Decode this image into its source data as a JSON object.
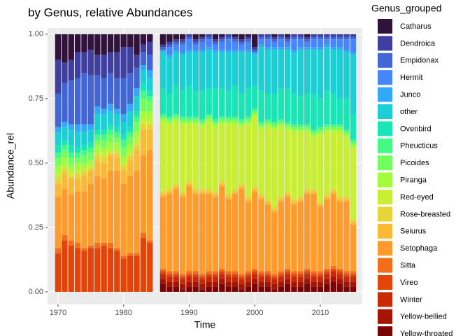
{
  "chart_data": {
    "type": "bar",
    "stacked": true,
    "title": "by Genus, relative Abundances",
    "x_label": "Time",
    "y_label": "Abundance_rel",
    "legend_title": "Genus_grouped",
    "legend_position": "right",
    "x": [
      1970,
      1971,
      1972,
      1973,
      1974,
      1975,
      1976,
      1977,
      1978,
      1979,
      1980,
      1981,
      1982,
      1983,
      1984,
      1986,
      1987,
      1988,
      1989,
      1990,
      1991,
      1992,
      1993,
      1994,
      1995,
      1996,
      1997,
      1998,
      1999,
      2000,
      2001,
      2002,
      2003,
      2004,
      2005,
      2006,
      2007,
      2008,
      2009,
      2010,
      2011,
      2012,
      2013,
      2014,
      2015
    ],
    "xlim": [
      1968.4,
      2016.4
    ],
    "xticks": [
      1970,
      1980,
      1990,
      2000,
      2010
    ],
    "ylim": [
      -0.049,
      1.024
    ],
    "yticks": [
      {
        "value": 0,
        "label": "0.00"
      },
      {
        "value": 0.25,
        "label": "0.25"
      },
      {
        "value": 0.5,
        "label": "0.50"
      },
      {
        "value": 0.75,
        "label": "0.75"
      },
      {
        "value": 1,
        "label": "1.00"
      }
    ],
    "grid": true,
    "series": [
      {
        "name": "Catharus",
        "color": "#30123b",
        "values": [
          0.1,
          0.11,
          0.1,
          0.07,
          0.07,
          0.06,
          0.08,
          0.08,
          0.07,
          0.07,
          0.05,
          0.05,
          0.08,
          0.04,
          0.03,
          0.04,
          0.03,
          0.02,
          0.02,
          0,
          0.02,
          0.01,
          0,
          0.02,
          0.01,
          0,
          0.01,
          0.02,
          0.01,
          0.05,
          0,
          0,
          0.01,
          0,
          0.01,
          0,
          0,
          0.01,
          0,
          0,
          0,
          0,
          0,
          0,
          0
        ]
      },
      {
        "name": "Dendroica",
        "color": "#3e3f9e",
        "values": [
          0.13,
          0.08,
          0.08,
          0.1,
          0.08,
          0.1,
          0.08,
          0.09,
          0.08,
          0.1,
          0.12,
          0.1,
          0.05,
          0.03,
          0.05,
          0.01,
          0.01,
          0.01,
          0.01,
          0.01,
          0.01,
          0.01,
          0.01,
          0.01,
          0.01,
          0.01,
          0.01,
          0.01,
          0.01,
          0.01,
          0.01,
          0.01,
          0.01,
          0.01,
          0.01,
          0.01,
          0.01,
          0.01,
          0.01,
          0.01,
          0.01,
          0.01,
          0.01,
          0.01,
          0.01
        ]
      },
      {
        "name": "Empidonax",
        "color": "#4266d4",
        "values": [
          0.13,
          0.15,
          0.17,
          0.18,
          0.2,
          0.19,
          0.12,
          0.12,
          0.12,
          0.12,
          0.14,
          0.12,
          0.08,
          0.05,
          0.06,
          0.01,
          0.01,
          0.01,
          0.01,
          0.01,
          0.01,
          0.01,
          0.01,
          0.01,
          0.01,
          0.01,
          0.01,
          0.01,
          0.01,
          0.01,
          0.01,
          0.01,
          0.01,
          0.01,
          0.01,
          0.01,
          0.01,
          0.01,
          0.01,
          0.01,
          0.01,
          0.01,
          0.01,
          0.01,
          0.01
        ]
      },
      {
        "name": "Hermit",
        "color": "#4686fb",
        "values": [
          0,
          0,
          0,
          0,
          0,
          0,
          0,
          0,
          0,
          0,
          0,
          0,
          0,
          0,
          0,
          0,
          0.03,
          0.02,
          0.03,
          0.04,
          0.02,
          0.03,
          0.03,
          0.02,
          0.03,
          0.04,
          0.03,
          0.02,
          0.03,
          0,
          0.02,
          0.03,
          0.02,
          0.03,
          0.02,
          0.04,
          0.03,
          0.02,
          0.03,
          0.03,
          0.02,
          0.03,
          0.03,
          0.04,
          0.05
        ]
      },
      {
        "name": "Junco",
        "color": "#32a9f8",
        "values": [
          0.02,
          0.02,
          0.02,
          0.03,
          0.03,
          0.02,
          0.03,
          0.02,
          0.03,
          0.02,
          0.03,
          0.03,
          0.03,
          0.02,
          0.03,
          0.01,
          0.01,
          0.01,
          0.01,
          0.01,
          0.01,
          0.01,
          0.01,
          0.01,
          0.01,
          0.01,
          0.01,
          0.01,
          0.01,
          0.01,
          0.01,
          0.01,
          0.01,
          0.01,
          0.01,
          0.01,
          0.01,
          0.01,
          0.01,
          0.01,
          0.01,
          0.01,
          0.01,
          0.01,
          0.01
        ]
      },
      {
        "name": "other",
        "color": "#1bcfd4",
        "values": [
          0.05,
          0.05,
          0.06,
          0.06,
          0.05,
          0.05,
          0.06,
          0.06,
          0.05,
          0.05,
          0.05,
          0.06,
          0.06,
          0.05,
          0.05,
          0.14,
          0.14,
          0.13,
          0.14,
          0.13,
          0.15,
          0.15,
          0.15,
          0.14,
          0.14,
          0.15,
          0.13,
          0.16,
          0.14,
          0.12,
          0.17,
          0.17,
          0.17,
          0.15,
          0.15,
          0.16,
          0.18,
          0.17,
          0.17,
          0.19,
          0.17,
          0.17,
          0.19,
          0.18,
          0.23
        ]
      },
      {
        "name": "Ovenbird",
        "color": "#1ae5b6",
        "values": [
          0.03,
          0.02,
          0.03,
          0.02,
          0.02,
          0.02,
          0.02,
          0.02,
          0.02,
          0.02,
          0.02,
          0.02,
          0.02,
          0.03,
          0.02,
          0.1,
          0.09,
          0.11,
          0.1,
          0.12,
          0.1,
          0.11,
          0.1,
          0.12,
          0.11,
          0.1,
          0.12,
          0.1,
          0.11,
          0.09,
          0.12,
          0.1,
          0.11,
          0.12,
          0.13,
          0.12,
          0.11,
          0.12,
          0.14,
          0.11,
          0.13,
          0.12,
          0.1,
          0.12,
          0.1
        ]
      },
      {
        "name": "Pheucticus",
        "color": "#46f884",
        "values": [
          0.02,
          0.02,
          0.02,
          0.02,
          0.02,
          0.02,
          0.02,
          0.02,
          0.02,
          0.02,
          0.03,
          0.02,
          0.02,
          0.03,
          0.02,
          0.01,
          0.01,
          0.01,
          0.01,
          0.01,
          0.01,
          0.01,
          0.01,
          0.01,
          0.01,
          0.01,
          0.01,
          0.01,
          0.01,
          0.01,
          0.01,
          0.01,
          0.01,
          0.01,
          0.01,
          0.01,
          0.01,
          0.01,
          0.01,
          0.01,
          0.01,
          0.01,
          0.01,
          0.01,
          0.01
        ]
      },
      {
        "name": "Picoides",
        "color": "#72fe5e",
        "values": [
          0.03,
          0.03,
          0.03,
          0.02,
          0.03,
          0.03,
          0.02,
          0.03,
          0.03,
          0.02,
          0.03,
          0.03,
          0.04,
          0.05,
          0.04,
          0.01,
          0.01,
          0.01,
          0.01,
          0.01,
          0.01,
          0.01,
          0.01,
          0.01,
          0.01,
          0.01,
          0.01,
          0.01,
          0.01,
          0.01,
          0.01,
          0.01,
          0.01,
          0.01,
          0.01,
          0.01,
          0.01,
          0.01,
          0.01,
          0.01,
          0.01,
          0.01,
          0.01,
          0.01,
          0.01
        ]
      },
      {
        "name": "Piranga",
        "color": "#a2fc3c",
        "values": [
          0.03,
          0.03,
          0.02,
          0.03,
          0.02,
          0.02,
          0.03,
          0.02,
          0.03,
          0.03,
          0.03,
          0.03,
          0.03,
          0.03,
          0.03,
          0.01,
          0.01,
          0.01,
          0.01,
          0.01,
          0.01,
          0.01,
          0.01,
          0.01,
          0.01,
          0.01,
          0.01,
          0.01,
          0.01,
          0.01,
          0.01,
          0.01,
          0.01,
          0.01,
          0.01,
          0.01,
          0.01,
          0.01,
          0.01,
          0.01,
          0.01,
          0.01,
          0.01,
          0.01,
          0.01
        ]
      },
      {
        "name": "Red-eyed",
        "color": "#c8ef34",
        "values": [
          0.02,
          0.01,
          0.02,
          0.01,
          0.01,
          0.01,
          0.01,
          0.02,
          0.01,
          0.01,
          0.01,
          0.01,
          0.02,
          0.02,
          0.02,
          0.27,
          0.25,
          0.24,
          0.26,
          0.22,
          0.25,
          0.24,
          0.26,
          0.25,
          0.22,
          0.27,
          0.25,
          0.22,
          0.28,
          0.27,
          0.25,
          0.28,
          0.3,
          0.27,
          0.24,
          0.26,
          0.25,
          0.22,
          0.2,
          0.26,
          0.24,
          0.22,
          0.25,
          0.23,
          0.28
        ]
      },
      {
        "name": "Rose-breasted",
        "color": "#e7d439",
        "values": [
          0.02,
          0.02,
          0.01,
          0.02,
          0.02,
          0.01,
          0.02,
          0.02,
          0.01,
          0.02,
          0.02,
          0.02,
          0.02,
          0.02,
          0.02,
          0.01,
          0.01,
          0.01,
          0.01,
          0.01,
          0.01,
          0.01,
          0.01,
          0.01,
          0.01,
          0.01,
          0.01,
          0.01,
          0.01,
          0.01,
          0.01,
          0.01,
          0.01,
          0.01,
          0.01,
          0.01,
          0.01,
          0.01,
          0.01,
          0.01,
          0.01,
          0.01,
          0.01,
          0.01,
          0.01
        ]
      },
      {
        "name": "Seiurus",
        "color": "#fbb938",
        "values": [
          0.05,
          0.06,
          0.06,
          0.05,
          0.06,
          0.05,
          0.06,
          0.06,
          0.06,
          0.05,
          0.05,
          0.06,
          0.08,
          0.1,
          0.08,
          0.01,
          0.01,
          0.01,
          0.01,
          0.01,
          0.01,
          0.01,
          0.01,
          0.01,
          0.01,
          0.01,
          0.01,
          0.01,
          0.01,
          0.01,
          0.01,
          0.01,
          0.01,
          0.01,
          0.01,
          0.01,
          0.01,
          0.01,
          0.01,
          0.01,
          0.01,
          0.01,
          0.01,
          0.01,
          0.01
        ]
      },
      {
        "name": "Setophaga",
        "color": "#fe9b2d",
        "values": [
          0.2,
          0.18,
          0.18,
          0.2,
          0.22,
          0.24,
          0.26,
          0.25,
          0.28,
          0.3,
          0.28,
          0.3,
          0.32,
          0.3,
          0.35,
          0.28,
          0.3,
          0.32,
          0.3,
          0.33,
          0.3,
          0.31,
          0.3,
          0.29,
          0.32,
          0.28,
          0.3,
          0.33,
          0.27,
          0.3,
          0.28,
          0.26,
          0.24,
          0.27,
          0.28,
          0.26,
          0.27,
          0.29,
          0.3,
          0.25,
          0.27,
          0.28,
          0.26,
          0.27,
          0.18
        ]
      },
      {
        "name": "Sitta",
        "color": "#f36e1b",
        "values": [
          0.02,
          0.02,
          0.02,
          0.02,
          0.01,
          0.01,
          0.02,
          0.01,
          0.02,
          0.01,
          0.01,
          0.01,
          0.01,
          0.02,
          0.01,
          0.01,
          0.01,
          0.01,
          0.01,
          0.01,
          0.01,
          0.01,
          0.01,
          0.01,
          0.01,
          0.01,
          0.01,
          0.01,
          0.01,
          0.01,
          0.01,
          0.01,
          0.01,
          0.01,
          0.01,
          0.01,
          0.01,
          0.01,
          0.01,
          0.01,
          0.01,
          0.01,
          0.01,
          0.01,
          0.01
        ]
      },
      {
        "name": "Vireo",
        "color": "#e3440a",
        "values": [
          0.15,
          0.2,
          0.18,
          0.17,
          0.16,
          0.17,
          0.17,
          0.18,
          0.17,
          0.16,
          0.13,
          0.14,
          0.14,
          0.21,
          0.19,
          0.01,
          0.01,
          0.01,
          0.01,
          0.01,
          0.01,
          0.01,
          0.01,
          0.01,
          0.01,
          0.01,
          0.01,
          0.01,
          0.01,
          0.01,
          0.01,
          0.01,
          0.01,
          0.01,
          0.01,
          0.01,
          0.01,
          0.01,
          0.01,
          0.01,
          0.01,
          0.01,
          0.01,
          0.01,
          0.01
        ]
      },
      {
        "name": "Winter",
        "color": "#c92903",
        "values": [
          0,
          0,
          0,
          0,
          0,
          0,
          0,
          0,
          0,
          0,
          0,
          0,
          0,
          0,
          0,
          0.02,
          0.02,
          0.02,
          0.02,
          0.02,
          0.02,
          0.02,
          0.02,
          0.02,
          0.02,
          0.02,
          0.02,
          0.02,
          0.02,
          0.02,
          0.02,
          0.02,
          0.02,
          0.02,
          0.02,
          0.02,
          0.02,
          0.02,
          0.02,
          0.02,
          0.02,
          0.02,
          0.02,
          0.02,
          0.02
        ]
      },
      {
        "name": "Yellow-bellied",
        "color": "#a51301",
        "values": [
          0,
          0,
          0,
          0,
          0,
          0,
          0,
          0,
          0,
          0,
          0,
          0,
          0,
          0,
          0,
          0.02,
          0.02,
          0.02,
          0.02,
          0.02,
          0.02,
          0.02,
          0.02,
          0.02,
          0.02,
          0.02,
          0.02,
          0.02,
          0.02,
          0.02,
          0.02,
          0.02,
          0.02,
          0.02,
          0.02,
          0.02,
          0.02,
          0.02,
          0.02,
          0.02,
          0.02,
          0.02,
          0.02,
          0.02,
          0.02
        ]
      },
      {
        "name": "Yellow-throated",
        "color": "#7a0403",
        "values": [
          0,
          0,
          0,
          0,
          0,
          0,
          0,
          0,
          0,
          0,
          0,
          0,
          0,
          0,
          0,
          0.03,
          0.02,
          0.02,
          0.01,
          0.02,
          0.02,
          0.01,
          0.02,
          0.02,
          0.03,
          0.02,
          0.02,
          0.01,
          0.02,
          0.03,
          0.02,
          0.02,
          0.01,
          0.02,
          0.03,
          0.02,
          0.02,
          0.03,
          0.02,
          0.02,
          0.03,
          0.04,
          0.03,
          0.02,
          0.02
        ]
      }
    ]
  }
}
